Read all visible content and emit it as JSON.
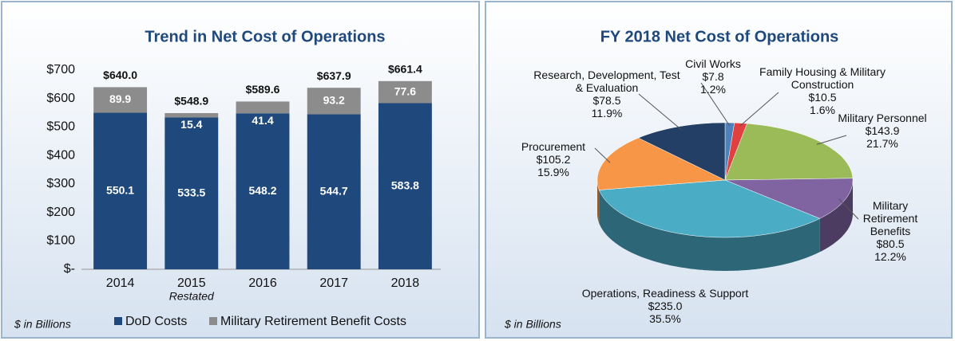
{
  "chart_data": [
    {
      "type": "stacked_bar",
      "title": "Trend in Net Cost of Operations",
      "note": "$ in Billions",
      "categories": [
        "2014",
        "2015",
        "2016",
        "2017",
        "2018"
      ],
      "x_sublabels": [
        null,
        "Restated",
        null,
        null,
        null
      ],
      "series": [
        {
          "name": "DoD Costs",
          "color": "#1f497d",
          "values": [
            550.1,
            533.5,
            548.2,
            544.7,
            583.8
          ]
        },
        {
          "name": "Military Retirement Benefit Costs",
          "color": "#8c8c8c",
          "values": [
            89.9,
            15.4,
            41.4,
            93.2,
            77.6
          ]
        }
      ],
      "totals": [
        640.0,
        548.9,
        589.6,
        637.9,
        661.4
      ],
      "total_labels": [
        "$640.0",
        "$548.9",
        "$589.6",
        "$637.9",
        "$661.4"
      ],
      "ylim": [
        0,
        700
      ],
      "yticks": [
        {
          "value": 0,
          "label": "$-"
        },
        {
          "value": 100,
          "label": "$100"
        },
        {
          "value": 200,
          "label": "$200"
        },
        {
          "value": 300,
          "label": "$300"
        },
        {
          "value": 400,
          "label": "$400"
        },
        {
          "value": 500,
          "label": "$500"
        },
        {
          "value": 600,
          "label": "$600"
        },
        {
          "value": 700,
          "label": "$700"
        }
      ],
      "grid": false
    },
    {
      "type": "pie",
      "title": "FY 2018 Net Cost of Operations",
      "note": "$ in Billions",
      "categories": [
        "Civil Works",
        "Family Housing & Military Construction",
        "Military Personnel",
        "Military Retirement Benefits",
        "Operations, Readiness & Support",
        "Procurement",
        "Research, Development, Test & Evaluation"
      ],
      "values": [
        7.8,
        10.5,
        143.9,
        80.5,
        235.0,
        105.2,
        78.5
      ],
      "value_labels": [
        "$7.8",
        "$10.5",
        "$143.9",
        "$80.5",
        "$235.0",
        "$105.2",
        "$78.5"
      ],
      "percents": [
        1.2,
        1.6,
        21.7,
        12.2,
        35.5,
        15.9,
        11.9
      ],
      "percent_labels": [
        "1.2%",
        "1.6%",
        "21.7%",
        "12.2%",
        "35.5%",
        "15.9%",
        "11.9%"
      ],
      "colors": [
        "#4f81bd",
        "#e0403f",
        "#9bbb59",
        "#8064a2",
        "#4bacc6",
        "#f79646",
        "#243f66"
      ]
    }
  ]
}
